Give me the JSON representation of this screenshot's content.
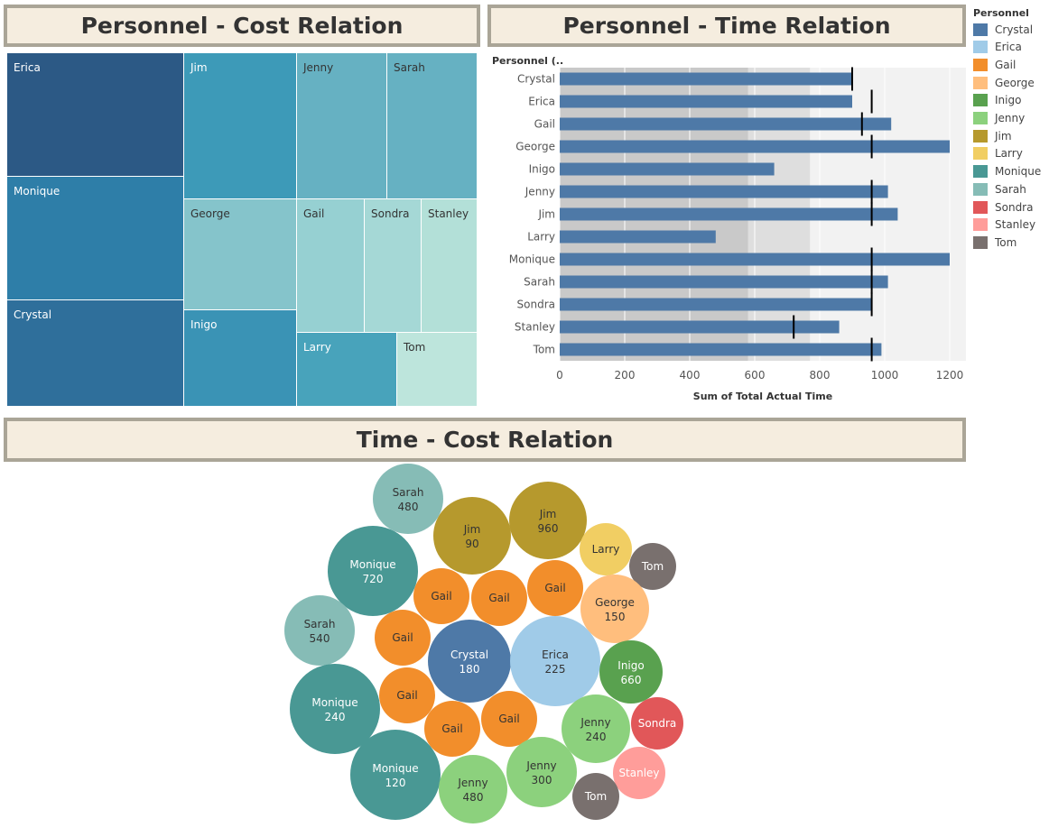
{
  "dashboard": {
    "titles": {
      "cost": "Personnel - Cost Relation",
      "time": "Personnel - Time Relation",
      "time_cost": "Time - Cost Relation"
    }
  },
  "legend": {
    "title": "Personnel",
    "items": [
      {
        "label": "Crystal",
        "color": "#4e79a7"
      },
      {
        "label": "Erica",
        "color": "#a0cbe8"
      },
      {
        "label": "Gail",
        "color": "#f28e2b"
      },
      {
        "label": "George",
        "color": "#ffbe7d"
      },
      {
        "label": "Inigo",
        "color": "#59a14f"
      },
      {
        "label": "Jenny",
        "color": "#8cd17d"
      },
      {
        "label": "Jim",
        "color": "#b6992d"
      },
      {
        "label": "Larry",
        "color": "#f1ce63"
      },
      {
        "label": "Monique",
        "color": "#499894"
      },
      {
        "label": "Sarah",
        "color": "#86bcb6"
      },
      {
        "label": "Sondra",
        "color": "#e15759"
      },
      {
        "label": "Stanley",
        "color": "#ff9d9a"
      },
      {
        "label": "Tom",
        "color": "#79706e"
      }
    ]
  },
  "chart_data": [
    {
      "type": "treemap",
      "title": "Personnel - Cost Relation",
      "categories": [
        "Erica",
        "Monique",
        "Crystal",
        "Jim",
        "Jenny",
        "Sarah",
        "George",
        "Inigo",
        "Gail",
        "Sondra",
        "Stanley",
        "Larry",
        "Tom"
      ]
    },
    {
      "type": "bar",
      "title": "Personnel - Time Relation",
      "ylabel": "Personnel (..",
      "xlabel": "Sum of Total Actual Time",
      "xlim": [
        0,
        1250
      ],
      "xticks": [
        0,
        200,
        400,
        600,
        800,
        1000,
        1200
      ],
      "grid": true,
      "categories": [
        "Crystal",
        "Erica",
        "Gail",
        "George",
        "Inigo",
        "Jenny",
        "Jim",
        "Larry",
        "Monique",
        "Sarah",
        "Sondra",
        "Stanley",
        "Tom"
      ],
      "values": [
        900,
        900,
        1020,
        1200,
        660,
        1010,
        1040,
        480,
        1200,
        1010,
        960,
        860,
        990
      ],
      "reference_lines": [
        900,
        960,
        930,
        960,
        0,
        960,
        960,
        0,
        960,
        960,
        960,
        720,
        960
      ]
    },
    {
      "type": "bubble",
      "title": "Time - Cost Relation",
      "points": [
        {
          "name": "Sarah",
          "value": "480"
        },
        {
          "name": "Jim",
          "value": "90"
        },
        {
          "name": "Jim",
          "value": "960"
        },
        {
          "name": "Larry",
          "value": ""
        },
        {
          "name": "Tom",
          "value": ""
        },
        {
          "name": "Monique",
          "value": "720"
        },
        {
          "name": "Gail",
          "value": ""
        },
        {
          "name": "Gail",
          "value": ""
        },
        {
          "name": "Gail",
          "value": ""
        },
        {
          "name": "George",
          "value": "150"
        },
        {
          "name": "Sarah",
          "value": "540"
        },
        {
          "name": "Gail",
          "value": ""
        },
        {
          "name": "Crystal",
          "value": "180"
        },
        {
          "name": "Erica",
          "value": "225"
        },
        {
          "name": "Inigo",
          "value": "660"
        },
        {
          "name": "Monique",
          "value": "240"
        },
        {
          "name": "Gail",
          "value": ""
        },
        {
          "name": "Sondra",
          "value": ""
        },
        {
          "name": "Gail",
          "value": ""
        },
        {
          "name": "Gail",
          "value": ""
        },
        {
          "name": "Jenny",
          "value": "240"
        },
        {
          "name": "Stanley",
          "value": ""
        },
        {
          "name": "Monique",
          "value": "120"
        },
        {
          "name": "Jenny",
          "value": "300"
        },
        {
          "name": "Jenny",
          "value": "480"
        },
        {
          "name": "Tom",
          "value": ""
        }
      ]
    }
  ]
}
